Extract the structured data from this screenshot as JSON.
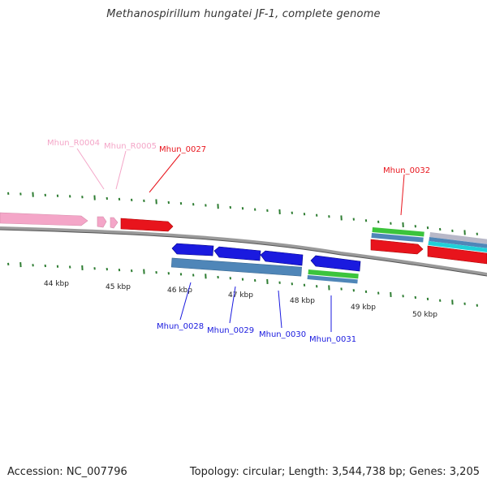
{
  "title": "Methanospirillum hungatei JF-1, complete genome",
  "footer": {
    "accession": "Accession: NC_007796",
    "topology": "Topology: circular; Length: 3,544,738 bp; Genes: 3,205"
  },
  "colors": {
    "backbone": "#8c8c8c",
    "tick": "#2e7d32",
    "rna": "#f4a6c8",
    "forward_cds": "#e8141c",
    "reverse_cds": "#1a1adf",
    "feature_green": "#3cc43c",
    "feature_steelblue": "#4f86b8",
    "feature_cyan": "#20d0d8",
    "feature_grey": "#b8b8c8"
  },
  "scale": {
    "tick_labels": [
      "44 kbp",
      "45 kbp",
      "46 kbp",
      "47 kbp",
      "48 kbp",
      "49 kbp",
      "50 kbp"
    ]
  },
  "genes": {
    "Mhun_R0004": "Mhun_R0004",
    "Mhun_R0005": "Mhun_R0005",
    "Mhun_0027": "Mhun_0027",
    "Mhun_0028": "Mhun_0028",
    "Mhun_0029": "Mhun_0029",
    "Mhun_0030": "Mhun_0030",
    "Mhun_0031": "Mhun_0031",
    "Mhun_0032": "Mhun_0032"
  }
}
